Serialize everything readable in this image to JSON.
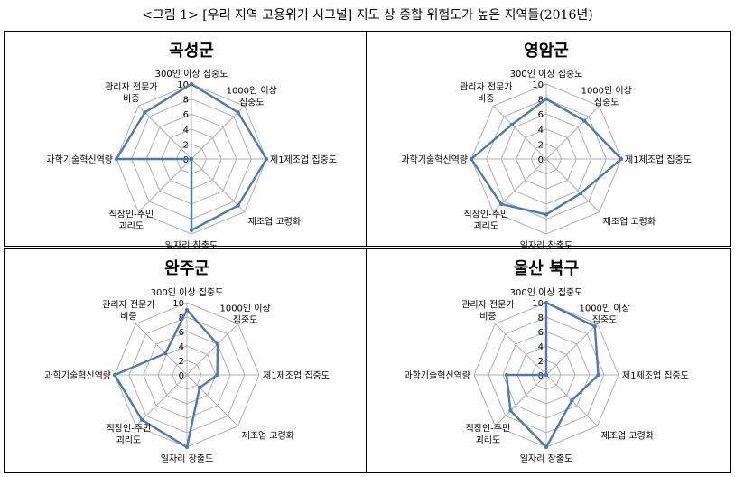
{
  "figure_title": "<그림 1> [우리 지역 고용위기 시그널] 지도 상 종합 위험도가 높은 지역들(2016년)",
  "colors": {
    "series": "#4a7ab5",
    "grid": "#b0b0b0"
  },
  "chart_data": [
    {
      "type": "radar",
      "title": "곡성군",
      "axes": [
        "300인 이상 집중도",
        "1000인 이상 집중도",
        "제1제조업 집중도",
        "제조업 고령화",
        "일자리 창출도",
        "직장인-주민 괴리도",
        "과학기술혁신역량",
        "관리자 전문가 비중"
      ],
      "ticks": [
        "0",
        "2",
        "4",
        "6",
        "8",
        "10"
      ],
      "rmax": 10,
      "values": [
        10,
        8.8,
        10,
        8.8,
        9.5,
        0,
        10,
        8.8
      ]
    },
    {
      "type": "radar",
      "title": "영암군",
      "axes": [
        "300인 이상 집중도",
        "1000인 이상 집중도",
        "제1제조업 집중도",
        "제조업 고령화",
        "일자리 창출도",
        "직장인-주민 괴리도",
        "과학기술혁신역량",
        "관리자 전문가 비중"
      ],
      "ticks": [
        "0",
        "2",
        "4",
        "6",
        "8",
        "10"
      ],
      "rmax": 10,
      "values": [
        8,
        7.2,
        10,
        6.5,
        7.4,
        8.5,
        10,
        6.5
      ]
    },
    {
      "type": "radar",
      "title": "완주군",
      "axes": [
        "300인 이상 집중도",
        "1000인 이상 집중도",
        "제1제조업 집중도",
        "제조업 고령화",
        "일자리 창출도",
        "직장인-주민 괴리도",
        "과학기술혁신역량",
        "관리자 전문가 비중"
      ],
      "ticks": [
        "0",
        "2",
        "4",
        "6",
        "8",
        "10"
      ],
      "rmax": 10,
      "values": [
        9,
        6,
        4.2,
        2.5,
        10,
        8.8,
        10,
        4.2
      ]
    },
    {
      "type": "radar",
      "title": "울산 북구",
      "axes": [
        "300인 이상 집중도",
        "1000인 이상 집중도",
        "제1제조업 집중도",
        "제조업 고령화",
        "일자리 창출도",
        "직장인-주민 괴리도",
        "과학기술혁신역량",
        "관리자 전문가 비중"
      ],
      "ticks": [
        "0",
        "2",
        "4",
        "6",
        "8",
        "10"
      ],
      "rmax": 10,
      "values": [
        10,
        9.5,
        7.2,
        5,
        10,
        7,
        5.5,
        0
      ]
    }
  ]
}
